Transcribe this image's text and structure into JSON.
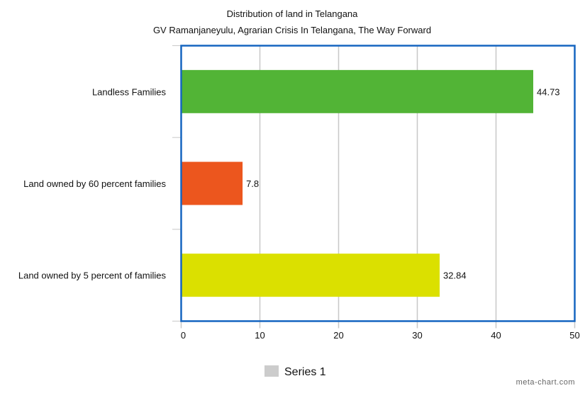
{
  "chart_data": {
    "type": "bar",
    "orientation": "horizontal",
    "title": "Distribution of land in Telangana",
    "subtitle": "GV Ramanjaneyulu, Agrarian Crisis In Telangana, The Way Forward",
    "categories": [
      "Landless Families",
      "Land owned by 60 percent families",
      "Land owned by 5 percent of families"
    ],
    "series": [
      {
        "name": "Series 1",
        "values": [
          44.73,
          7.8,
          32.84
        ],
        "colors": [
          "#52b436",
          "#ec561e",
          "#dbe000"
        ]
      }
    ],
    "data_labels": [
      "44.73",
      "7.8",
      "32.84"
    ],
    "xlim": [
      0,
      50
    ],
    "x_ticks": [
      0,
      10,
      20,
      30,
      40,
      50
    ],
    "grid": true,
    "legend": {
      "position": "bottom",
      "label": "Series 1",
      "color": "#cccccc"
    },
    "frame_color": "#1565c0",
    "watermark": "meta-chart.com"
  }
}
